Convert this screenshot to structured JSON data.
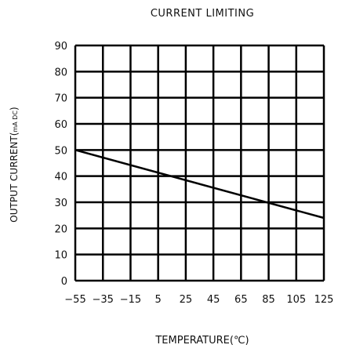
{
  "chart_data": {
    "type": "line",
    "title": "CURRENT  LIMITING",
    "xlabel": "TEMPERATURE(℃)",
    "ylabel_main": "OUTPUT  CURRENT(",
    "ylabel_sub": "mA DC",
    "ylabel_close": ")",
    "xlim": [
      -55,
      125
    ],
    "ylim": [
      0,
      90
    ],
    "x_ticks": [
      -55,
      -35,
      -15,
      5,
      25,
      45,
      65,
      85,
      105,
      125
    ],
    "x_tick_labels": [
      "−55",
      "−35",
      "−15",
      "5",
      "25",
      "45",
      "65",
      "85",
      "105",
      "125"
    ],
    "y_ticks": [
      0,
      10,
      20,
      30,
      40,
      50,
      60,
      70,
      80,
      90
    ],
    "y_tick_labels": [
      "0",
      "10",
      "20",
      "30",
      "40",
      "50",
      "60",
      "70",
      "80",
      "90"
    ],
    "grid": true,
    "series": [
      {
        "x": [
          -55,
          125
        ],
        "y": [
          50,
          24
        ]
      }
    ]
  }
}
